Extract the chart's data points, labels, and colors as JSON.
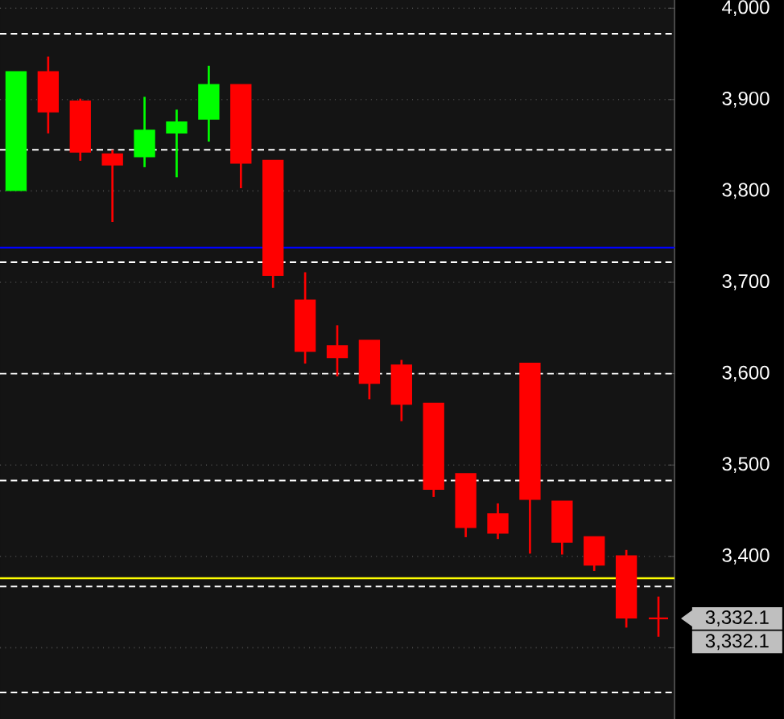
{
  "chart_data": {
    "type": "candlestick",
    "categories": [
      null,
      null,
      null,
      null,
      null,
      null,
      null,
      null,
      null,
      null,
      null,
      null,
      null,
      null,
      null,
      null,
      null,
      null,
      null,
      null,
      null
    ],
    "ohlc": [
      [
        3801,
        3930,
        3801,
        3930
      ],
      [
        3930,
        3947,
        3863,
        3887
      ],
      [
        3898,
        3901,
        3833,
        3843
      ],
      [
        3840,
        3845,
        3766,
        3829
      ],
      [
        3838,
        3903,
        3826,
        3866
      ],
      [
        3864,
        3889,
        3815,
        3875
      ],
      [
        3879,
        3937,
        3854,
        3916
      ],
      [
        3916,
        3916,
        3803,
        3831
      ],
      [
        3833,
        3833,
        3694,
        3708
      ],
      [
        3680,
        3711,
        3611,
        3625
      ],
      [
        3630,
        3653,
        3597,
        3618
      ],
      [
        3636,
        3636,
        3572,
        3590
      ],
      [
        3609,
        3615,
        3548,
        3567
      ],
      [
        3567,
        3567,
        3465,
        3474
      ],
      [
        3490,
        3490,
        3421,
        3432
      ],
      [
        3446,
        3458,
        3419,
        3426
      ],
      [
        3611,
        3611,
        3403,
        3463
      ],
      [
        3460,
        3460,
        3402,
        3416
      ],
      [
        3421,
        3421,
        3384,
        3391
      ],
      [
        3400,
        3407,
        3322,
        3333
      ],
      [
        3332.1,
        3356,
        3312,
        3332.1
      ]
    ],
    "colors": [
      "#00ff00",
      "#ff0000",
      "#ff0000",
      "#ff0000",
      "#00ff00",
      "#00ff00",
      "#00ff00",
      "#ff0000",
      "#ff0000",
      "#ff0000",
      "#ff0000",
      "#ff0000",
      "#ff0000",
      "#ff0000",
      "#ff0000",
      "#ff0000",
      "#ff0000",
      "#ff0000",
      "#ff0000",
      "#ff0000",
      "#ff0000"
    ],
    "ylim": [
      3222,
      4009
    ],
    "yticks": [
      {
        "value": 3300,
        "label": null
      },
      {
        "value": 3400,
        "label": "3,400"
      },
      {
        "value": 3500,
        "label": "3,500"
      },
      {
        "value": 3600,
        "label": "3,600"
      },
      {
        "value": 3700,
        "label": "3,700"
      },
      {
        "value": 3800,
        "label": "3,800"
      },
      {
        "value": 3900,
        "label": "3,900"
      },
      {
        "value": 4000,
        "label": "4,000"
      }
    ],
    "grid": "y",
    "tick_labels": "y",
    "ref_lines": [
      {
        "axis": "y",
        "value": 3972,
        "color": "#ffffff",
        "line_style": "dashed"
      },
      {
        "axis": "y",
        "value": 3845,
        "color": "#ffffff",
        "line_style": "dashed"
      },
      {
        "axis": "y",
        "value": 3722,
        "color": "#ffffff",
        "line_style": "dashed"
      },
      {
        "axis": "y",
        "value": 3600,
        "color": "#ffffff",
        "line_style": "dashed"
      },
      {
        "axis": "y",
        "value": 3483,
        "color": "#ffffff",
        "line_style": "dashed"
      },
      {
        "axis": "y",
        "value": 3367,
        "color": "#ffffff",
        "line_style": "dashed"
      },
      {
        "axis": "y",
        "value": 3251,
        "color": "#ffffff",
        "line_style": "dashed"
      },
      {
        "axis": "y",
        "value": 3738,
        "color": "#0000ff",
        "line_style": "solid"
      },
      {
        "axis": "y",
        "value": 3376,
        "color": "#ffff00",
        "line_style": "solid"
      }
    ],
    "annotations": [
      "3,332.1",
      "3,332.1"
    ]
  }
}
